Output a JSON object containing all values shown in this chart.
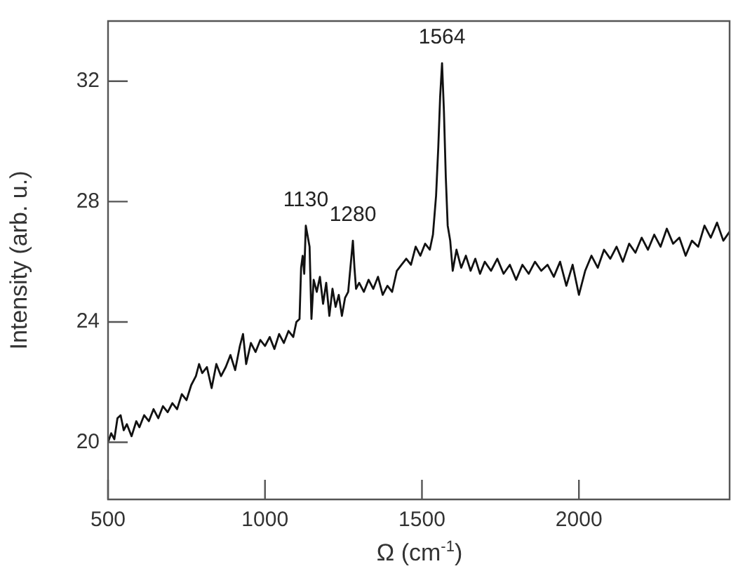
{
  "chart_data": {
    "type": "line",
    "xlabel": "Ω (cm$^{-1}$)",
    "ylabel": "Intensity (arb. u.)",
    "xlim": [
      500,
      2480
    ],
    "xticks": [
      500,
      1000,
      1500,
      2000
    ],
    "ylim": [
      18.1,
      34
    ],
    "yticks": [
      20,
      24,
      28,
      32
    ],
    "grid": false,
    "legend": false,
    "marker": "none",
    "line_style": "solid",
    "color": "#111111",
    "annotations": [
      {
        "text": "1130",
        "x": 1130,
        "y": 27.2
      },
      {
        "text": "1280",
        "x": 1280,
        "y": 26.7
      },
      {
        "text": "1564",
        "x": 1564,
        "y": 32.6
      }
    ],
    "x": [
      500,
      510,
      520,
      530,
      540,
      550,
      560,
      575,
      590,
      600,
      615,
      630,
      645,
      660,
      675,
      690,
      705,
      720,
      735,
      750,
      765,
      780,
      790,
      800,
      815,
      830,
      845,
      860,
      875,
      890,
      905,
      920,
      930,
      940,
      955,
      970,
      985,
      1000,
      1015,
      1030,
      1045,
      1060,
      1075,
      1090,
      1100,
      1110,
      1115,
      1120,
      1125,
      1130,
      1142,
      1148,
      1155,
      1165,
      1175,
      1185,
      1195,
      1205,
      1215,
      1225,
      1235,
      1245,
      1255,
      1265,
      1280,
      1285,
      1290,
      1300,
      1315,
      1330,
      1345,
      1360,
      1375,
      1390,
      1405,
      1420,
      1435,
      1450,
      1465,
      1480,
      1495,
      1510,
      1525,
      1535,
      1545,
      1552,
      1558,
      1564,
      1570,
      1576,
      1582,
      1590,
      1598,
      1610,
      1625,
      1640,
      1655,
      1670,
      1685,
      1700,
      1720,
      1740,
      1760,
      1780,
      1800,
      1820,
      1840,
      1860,
      1880,
      1900,
      1920,
      1940,
      1960,
      1980,
      2000,
      2020,
      2040,
      2060,
      2080,
      2100,
      2120,
      2140,
      2160,
      2180,
      2200,
      2220,
      2240,
      2260,
      2280,
      2300,
      2320,
      2340,
      2360,
      2380,
      2400,
      2420,
      2440,
      2460,
      2480
    ],
    "values": [
      20.0,
      20.3,
      20.1,
      20.8,
      20.9,
      20.4,
      20.6,
      20.2,
      20.7,
      20.5,
      20.9,
      20.7,
      21.1,
      20.8,
      21.2,
      21.0,
      21.3,
      21.1,
      21.6,
      21.4,
      21.9,
      22.2,
      22.6,
      22.3,
      22.5,
      21.8,
      22.6,
      22.2,
      22.5,
      22.9,
      22.4,
      23.2,
      23.6,
      22.6,
      23.3,
      23.0,
      23.4,
      23.2,
      23.5,
      23.1,
      23.6,
      23.3,
      23.7,
      23.5,
      24.0,
      24.1,
      25.8,
      26.2,
      25.6,
      27.2,
      26.5,
      24.1,
      25.4,
      25.0,
      25.5,
      24.6,
      25.3,
      24.2,
      25.1,
      24.5,
      24.9,
      24.2,
      24.8,
      25.0,
      26.7,
      25.8,
      25.1,
      25.3,
      25.0,
      25.4,
      25.1,
      25.5,
      24.9,
      25.2,
      25.0,
      25.7,
      25.9,
      26.1,
      25.9,
      26.5,
      26.2,
      26.6,
      26.4,
      26.9,
      28.2,
      29.8,
      31.5,
      32.6,
      31.0,
      28.8,
      27.2,
      26.7,
      25.7,
      26.4,
      25.8,
      26.2,
      25.7,
      26.1,
      25.6,
      26.0,
      25.7,
      26.1,
      25.6,
      25.9,
      25.4,
      25.9,
      25.6,
      26.0,
      25.7,
      25.9,
      25.5,
      26.0,
      25.2,
      25.9,
      24.9,
      25.7,
      26.2,
      25.8,
      26.4,
      26.1,
      26.5,
      26.0,
      26.6,
      26.3,
      26.8,
      26.4,
      26.9,
      26.5,
      27.1,
      26.6,
      26.8,
      26.2,
      26.7,
      26.5,
      27.2,
      26.8,
      27.3,
      26.7,
      27.0
    ]
  }
}
